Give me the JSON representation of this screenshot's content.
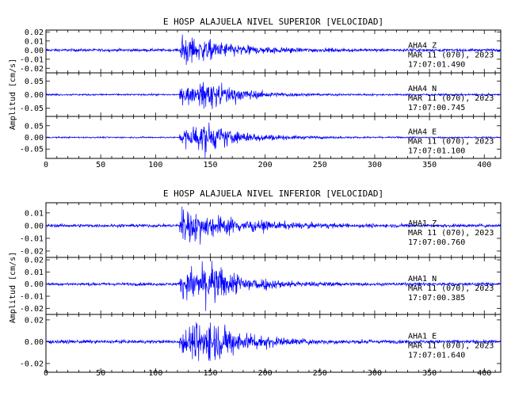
{
  "chart_data": [
    {
      "type": "line",
      "title": "E HOSP ALAJUELA NIVEL SUPERIOR [VELOCIDAD]",
      "ylabel": "Amplitud [cm/s]",
      "xlim": [
        0,
        415
      ],
      "x_ticks": [
        0,
        50,
        100,
        150,
        200,
        250,
        300,
        350,
        400
      ],
      "grid": false,
      "series": [
        {
          "name": "AHA4 Z",
          "station": "AHA4",
          "component": "Z",
          "date_text": "MAR 11 (070), 2023",
          "time_text": "17:07:01.490",
          "ylim": [
            -0.025,
            0.022
          ],
          "y_ticks": [
            0.02,
            0.01,
            0.0,
            -0.01,
            -0.02
          ],
          "y_tick_labels": [
            "0.02",
            "0.01",
            "0.00",
            "-0.01",
            "-0.02"
          ],
          "signal": {
            "onset_s": 122,
            "peak_s": 125,
            "noise": 0.0015,
            "peak_amp": 0.02,
            "decay_s": 40
          }
        },
        {
          "name": "AHA4 N",
          "station": "AHA4",
          "component": "N",
          "date_text": "MAR 11 (070), 2023",
          "time_text": "17:07:00.745",
          "ylim": [
            -0.08,
            0.08
          ],
          "y_ticks": [
            0.05,
            0.0,
            -0.05
          ],
          "y_tick_labels": [
            "0.05",
            "0.00",
            "-0.05"
          ],
          "signal": {
            "onset_s": 122,
            "peak_s": 150,
            "noise": 0.003,
            "peak_amp": 0.06,
            "decay_s": 30
          }
        },
        {
          "name": "AHA4 E",
          "station": "AHA4",
          "component": "E",
          "date_text": "MAR 11 (070), 2023",
          "time_text": "17:07:01.100",
          "ylim": [
            -0.09,
            0.09
          ],
          "y_ticks": [
            0.05,
            0.0,
            -0.05
          ],
          "y_tick_labels": [
            "0.05",
            "0.00",
            "-0.05"
          ],
          "signal": {
            "onset_s": 122,
            "peak_s": 145,
            "noise": 0.003,
            "peak_amp": 0.08,
            "decay_s": 32
          }
        }
      ]
    },
    {
      "type": "line",
      "title": "E HOSP ALAJUELA NIVEL INFERIOR [VELOCIDAD]",
      "ylabel": "Amplitud [cm/s]",
      "xlim": [
        0,
        415
      ],
      "x_ticks": [
        0,
        50,
        100,
        150,
        200,
        250,
        300,
        350,
        400
      ],
      "grid": false,
      "series": [
        {
          "name": "AHA1 Z",
          "station": "AHA1",
          "component": "Z",
          "date_text": "MAR 11 (070), 2023",
          "time_text": "17:07:00.760",
          "ylim": [
            -0.025,
            0.018
          ],
          "y_ticks": [
            0.01,
            0.0,
            -0.01,
            -0.02
          ],
          "y_tick_labels": [
            "0.01",
            "0.00",
            "-0.01",
            "-0.02"
          ],
          "signal": {
            "onset_s": 122,
            "peak_s": 125,
            "noise": 0.0012,
            "peak_amp": 0.016,
            "decay_s": 45
          }
        },
        {
          "name": "AHA1 N",
          "station": "AHA1",
          "component": "N",
          "date_text": "MAR 11 (070), 2023",
          "time_text": "17:07:00.385",
          "ylim": [
            -0.025,
            0.022
          ],
          "y_ticks": [
            0.02,
            0.01,
            0.0,
            -0.01,
            -0.02
          ],
          "y_tick_labels": [
            "0.02",
            "0.01",
            "0.00",
            "-0.01",
            "-0.02"
          ],
          "signal": {
            "onset_s": 122,
            "peak_s": 150,
            "noise": 0.0012,
            "peak_amp": 0.02,
            "decay_s": 32
          }
        },
        {
          "name": "AHA1 E",
          "station": "AHA1",
          "component": "E",
          "date_text": "MAR 11 (070), 2023",
          "time_text": "17:07:01.640",
          "ylim": [
            -0.028,
            0.025
          ],
          "y_ticks": [
            0.02,
            0.0,
            -0.02
          ],
          "y_tick_labels": [
            "0.02",
            "0.00",
            "-0.02"
          ],
          "signal": {
            "onset_s": 122,
            "peak_s": 150,
            "noise": 0.0015,
            "peak_amp": 0.024,
            "decay_s": 32
          }
        }
      ]
    }
  ]
}
